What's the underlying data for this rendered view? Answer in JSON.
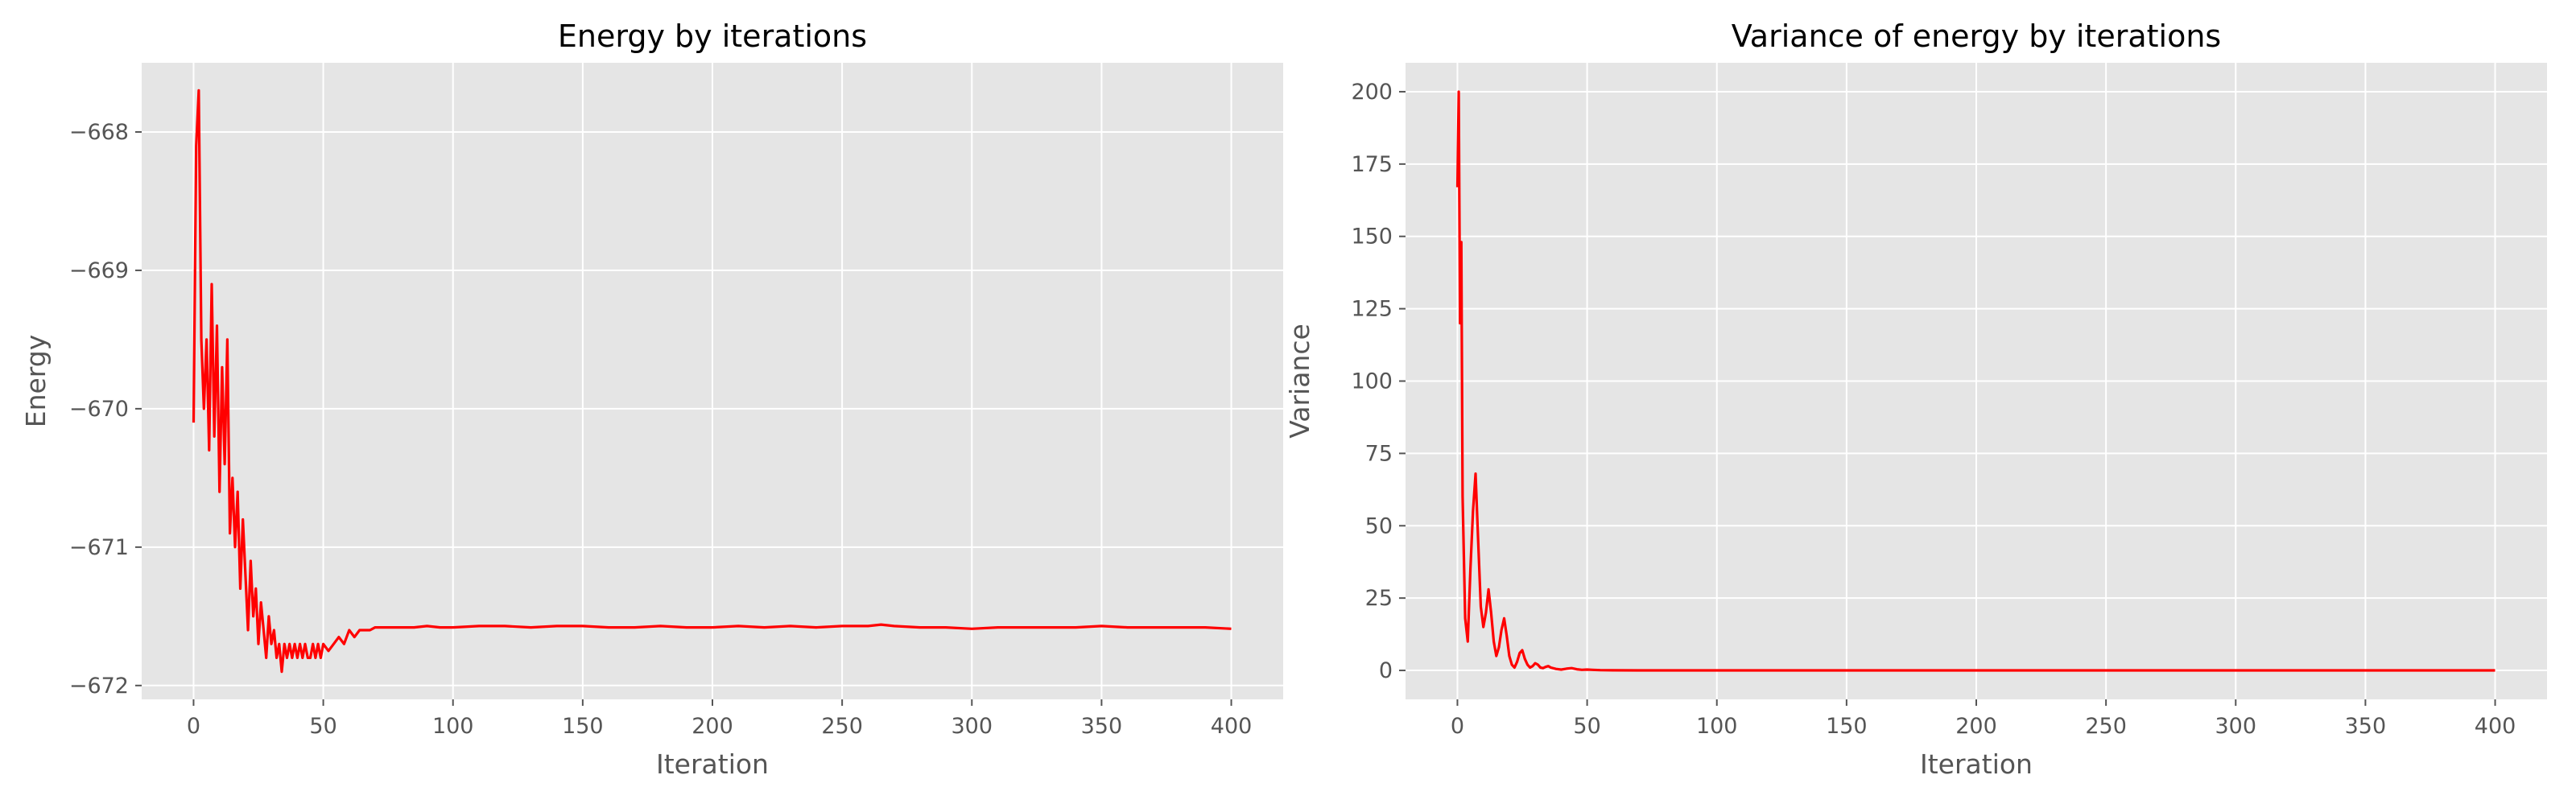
{
  "chart_data": [
    {
      "type": "line",
      "title": "Energy by iterations",
      "xlabel": "Iteration",
      "ylabel": "Energy",
      "xlim": [
        -20,
        420
      ],
      "ylim": [
        -672.1,
        -667.5
      ],
      "xticks": [
        0,
        50,
        100,
        150,
        200,
        250,
        300,
        350,
        400
      ],
      "yticks": [
        -668,
        -669,
        -670,
        -671,
        -672
      ],
      "xtick_labels": [
        "0",
        "50",
        "100",
        "150",
        "200",
        "250",
        "300",
        "350",
        "400"
      ],
      "ytick_labels": [
        "−668",
        "−669",
        "−670",
        "−671",
        "−672"
      ],
      "grid": true,
      "background": "#e5e5e5",
      "line_color": "#ff0000",
      "series": [
        {
          "x": [
            0,
            1,
            2,
            3,
            4,
            5,
            6,
            7,
            8,
            9,
            10,
            11,
            12,
            13,
            14,
            15,
            16,
            17,
            18,
            19,
            20,
            21,
            22,
            23,
            24,
            25,
            26,
            27,
            28,
            29,
            30,
            31,
            32,
            33,
            34,
            35,
            36,
            37,
            38,
            39,
            40,
            41,
            42,
            43,
            44,
            45,
            46,
            47,
            48,
            49,
            50,
            52,
            54,
            56,
            58,
            60,
            62,
            64,
            66,
            68,
            70,
            75,
            80,
            85,
            90,
            95,
            100,
            110,
            120,
            130,
            140,
            150,
            160,
            170,
            180,
            190,
            200,
            210,
            220,
            230,
            240,
            250,
            260,
            265,
            270,
            280,
            290,
            300,
            310,
            320,
            330,
            340,
            350,
            360,
            370,
            380,
            390,
            400
          ],
          "y": [
            -670.1,
            -668.1,
            -667.7,
            -669.5,
            -670.0,
            -669.5,
            -670.3,
            -669.1,
            -670.2,
            -669.4,
            -670.6,
            -669.7,
            -670.4,
            -669.5,
            -670.9,
            -670.5,
            -671.0,
            -670.6,
            -671.3,
            -670.8,
            -671.2,
            -671.6,
            -671.1,
            -671.5,
            -671.3,
            -671.7,
            -671.4,
            -671.6,
            -671.8,
            -671.5,
            -671.7,
            -671.6,
            -671.8,
            -671.7,
            -671.9,
            -671.7,
            -671.8,
            -671.7,
            -671.8,
            -671.7,
            -671.8,
            -671.7,
            -671.8,
            -671.7,
            -671.8,
            -671.8,
            -671.7,
            -671.8,
            -671.7,
            -671.8,
            -671.7,
            -671.75,
            -671.7,
            -671.65,
            -671.7,
            -671.6,
            -671.65,
            -671.6,
            -671.6,
            -671.6,
            -671.58,
            -671.58,
            -671.58,
            -671.58,
            -671.57,
            -671.58,
            -671.58,
            -671.57,
            -671.57,
            -671.58,
            -671.57,
            -671.57,
            -671.58,
            -671.58,
            -671.57,
            -671.58,
            -671.58,
            -671.57,
            -671.58,
            -671.57,
            -671.58,
            -671.57,
            -671.57,
            -671.56,
            -671.57,
            -671.58,
            -671.58,
            -671.59,
            -671.58,
            -671.58,
            -671.58,
            -671.58,
            -671.57,
            -671.58,
            -671.58,
            -671.58,
            -671.58,
            -671.59
          ]
        }
      ]
    },
    {
      "type": "line",
      "title": "Variance of energy by iterations",
      "xlabel": "Iteration",
      "ylabel": "Variance",
      "xlim": [
        -20,
        420
      ],
      "ylim": [
        -10,
        210
      ],
      "xticks": [
        0,
        50,
        100,
        150,
        200,
        250,
        300,
        350,
        400
      ],
      "yticks": [
        0,
        25,
        50,
        75,
        100,
        125,
        150,
        175,
        200
      ],
      "xtick_labels": [
        "0",
        "50",
        "100",
        "150",
        "200",
        "250",
        "300",
        "350",
        "400"
      ],
      "ytick_labels": [
        "0",
        "25",
        "50",
        "75",
        "100",
        "125",
        "150",
        "175",
        "200"
      ],
      "grid": true,
      "background": "#e5e5e5",
      "line_color": "#ff0000",
      "series": [
        {
          "x": [
            0,
            0.5,
            1,
            1.5,
            2,
            3,
            4,
            5,
            6,
            7,
            8,
            9,
            10,
            11,
            12,
            13,
            14,
            15,
            16,
            17,
            18,
            19,
            20,
            21,
            22,
            23,
            24,
            25,
            26,
            27,
            28,
            29,
            30,
            31,
            32,
            33,
            34,
            35,
            36,
            38,
            40,
            42,
            44,
            46,
            48,
            50,
            52,
            55,
            60,
            70,
            80,
            100,
            150,
            200,
            250,
            300,
            350,
            400
          ],
          "y": [
            167,
            200,
            120,
            148,
            60,
            18,
            10,
            35,
            55,
            68,
            45,
            22,
            15,
            20,
            28,
            20,
            10,
            5,
            8,
            14,
            18,
            12,
            5,
            2,
            1,
            3,
            6,
            7,
            4,
            2,
            1,
            1.5,
            2.5,
            2,
            1,
            0.8,
            1.2,
            1.5,
            1,
            0.5,
            0.3,
            0.6,
            0.8,
            0.4,
            0.2,
            0.3,
            0.2,
            0.1,
            0.05,
            0.02,
            0.01,
            0,
            0,
            0,
            0,
            0,
            0,
            0
          ]
        }
      ]
    }
  ]
}
